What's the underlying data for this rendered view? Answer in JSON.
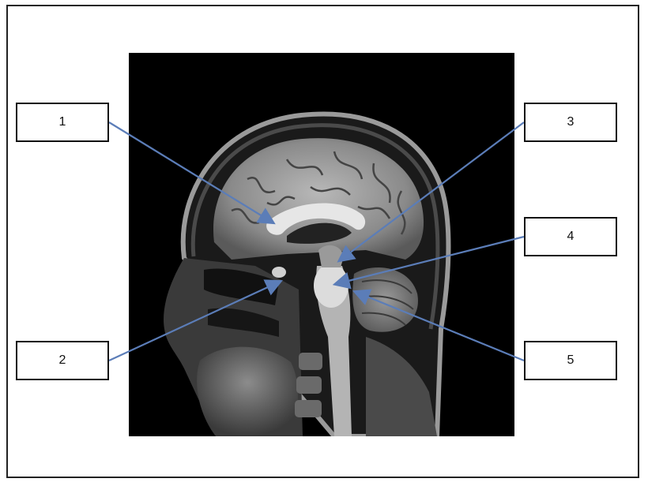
{
  "labels": [
    "1",
    "2",
    "3",
    "4",
    "5"
  ],
  "colors": {
    "arrow": "#5b7db8",
    "box_border": "#111111",
    "background": "#ffffff",
    "mri_background": "#000000"
  },
  "image": {
    "description_icon": "mri-sagittal-head-image"
  }
}
